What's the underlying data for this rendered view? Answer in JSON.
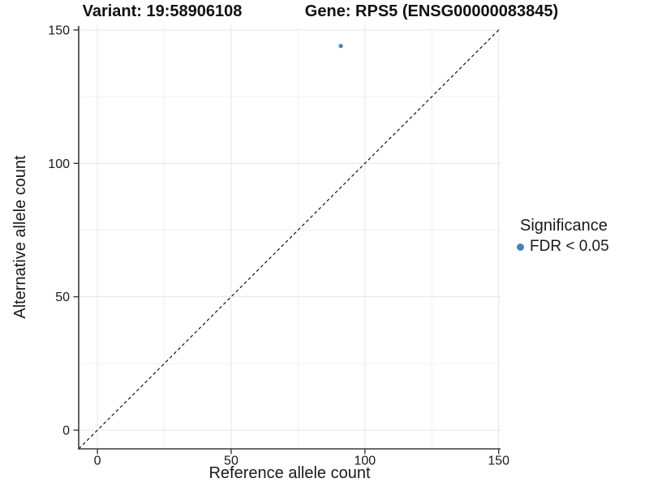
{
  "chart_data": {
    "type": "scatter",
    "title_left": "Variant: 19:58906108",
    "title_right": "Gene: RPS5 (ENSG00000083845)",
    "xlabel": "Reference allele count",
    "ylabel": "Alternative allele count",
    "xlim": [
      -7,
      150.7
    ],
    "ylim": [
      -7,
      151.5
    ],
    "x_ticks": [
      0,
      50,
      100,
      150
    ],
    "y_ticks": [
      0,
      50,
      100,
      150
    ],
    "x_minor_ticks": [
      25,
      75,
      125
    ],
    "y_minor_ticks": [
      25,
      75,
      125
    ],
    "grid": true,
    "series": [
      {
        "name": "FDR < 0.05",
        "color": "#4682b4",
        "points": [
          {
            "x": 91,
            "y": 144
          }
        ]
      }
    ],
    "reference_line": {
      "type": "identity",
      "slope": 1,
      "intercept": 0,
      "style": "dashed",
      "color": "#000000"
    },
    "legend": {
      "title": "Significance",
      "position": "right",
      "entries": [
        {
          "label": "FDR < 0.05",
          "marker": "circle",
          "color": "#4682b4"
        }
      ]
    }
  },
  "colors": {
    "background": "#ffffff",
    "axis_line": "#3b3b3b",
    "grid_major": "#e5e5e5",
    "grid_minor": "#f0f0f0",
    "tick_text": "#1a1a1a",
    "title_text": "#111111",
    "point": "#4682b4"
  }
}
